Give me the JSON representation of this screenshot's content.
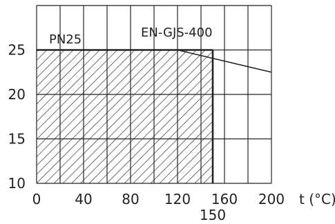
{
  "chart_data": {
    "type": "area",
    "xlabel": "t (°C)",
    "ylabel": "",
    "xlim": [
      0,
      200
    ],
    "ylim": [
      10,
      30
    ],
    "x_ticks": [
      "0",
      "40",
      "80",
      "120",
      "160",
      "200"
    ],
    "x_extra_tick": "150",
    "y_ticks": [
      "10",
      "15",
      "20",
      "25"
    ],
    "grid": true,
    "series": [
      {
        "name": "PN25",
        "fill": "hatched",
        "x": [
          0,
          150
        ],
        "y": [
          25,
          25
        ]
      },
      {
        "name": "EN-GJS-400",
        "fill": "none",
        "x": [
          120,
          200
        ],
        "y": [
          25,
          22.5
        ]
      }
    ],
    "colors": {
      "line": "#222222",
      "grid": "#222222",
      "background": "#ffffff"
    }
  }
}
